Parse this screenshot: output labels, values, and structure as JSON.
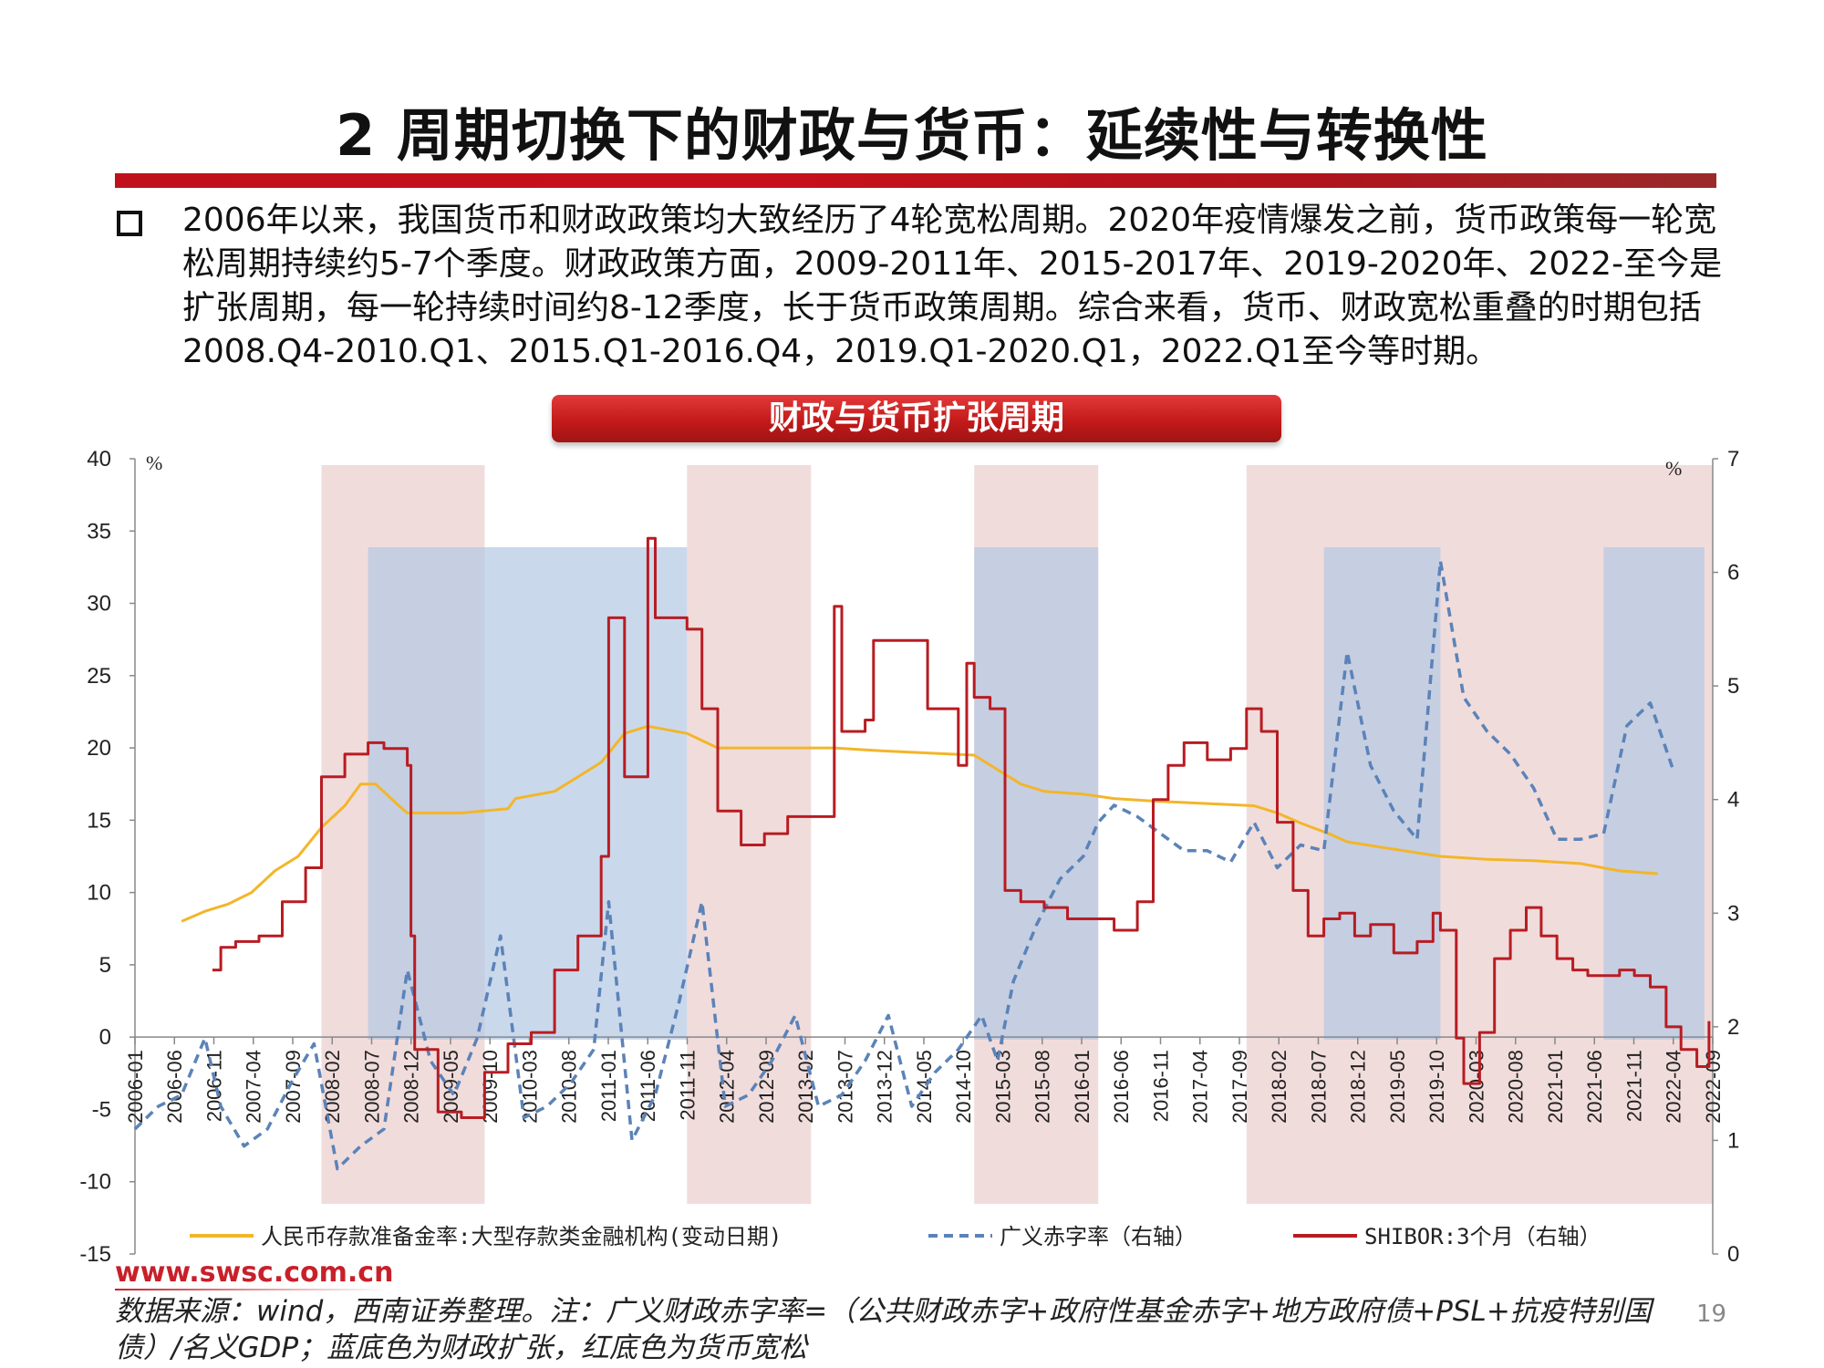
{
  "slide": {
    "title": "2 周期切换下的财政与货币：延续性与转换性",
    "bullet": "2006年以来，我国货币和财政政策均大致经历了4轮宽松周期。2020年疫情爆发之前，货币政策每一轮宽松周期持续约5-7个季度。财政政策方面，2009-2011年、2015-2017年、2019-2020年、2022-至今是扩张周期，每一轮持续时间约8-12季度，长于货币政策周期。综合来看，货币、财政宽松重叠的时期包括2008.Q4-2010.Q1、2015.Q1-2016.Q4，2019.Q1-2020.Q1，2022.Q1至今等时期。",
    "chart_label": "财政与货币扩张周期",
    "website": "www.swsc.com.cn",
    "source": "数据来源：wind，西南证券整理。注：广义财政赤字率=（公共财政赤字+政府性基金赤字+地方政府债+PSL+抗疫特别国债）/名义GDP；蓝底色为财政扩张，红底色为货币宽松",
    "page_number": "19"
  },
  "chart_data": {
    "type": "line",
    "title": "",
    "y_left": {
      "ticks": [
        40,
        35,
        30,
        25,
        20,
        15,
        10,
        5,
        0,
        -5,
        -10,
        -15
      ],
      "unit": "%",
      "range": [
        -15,
        40
      ]
    },
    "y_right": {
      "ticks": [
        7,
        6,
        5,
        4,
        3,
        2,
        1,
        0
      ],
      "unit": "%",
      "range": [
        0,
        7
      ]
    },
    "x_ticks": [
      "2006-01",
      "2006-06",
      "2006-11",
      "2007-04",
      "2007-09",
      "2008-02",
      "2008-07",
      "2008-12",
      "2009-05",
      "2009-10",
      "2010-03",
      "2010-08",
      "2011-01",
      "2011-06",
      "2011-11",
      "2012-04",
      "2012-09",
      "2013-02",
      "2013-07",
      "2013-12",
      "2014-05",
      "2014-10",
      "2015-03",
      "2015-08",
      "2016-01",
      "2016-06",
      "2016-11",
      "2017-04",
      "2017-09",
      "2018-02",
      "2018-07",
      "2018-12",
      "2019-05",
      "2019-10",
      "2020-03",
      "2020-08",
      "2021-01",
      "2021-06",
      "2021-11",
      "2022-04",
      "2022-09"
    ],
    "x_range": [
      2006.0,
      2022.92
    ],
    "colors": {
      "rrr": "#f2b62a",
      "deficit": "#5b83b8",
      "shibor": "#b81c22",
      "monetary_band": "#efd6d6",
      "fiscal_band": "#b4c8e4"
    },
    "monetary_easing_periods": [
      [
        2008.0,
        2009.75
      ],
      [
        2011.92,
        2013.25
      ],
      [
        2015.0,
        2016.33
      ],
      [
        2017.92,
        2022.92
      ]
    ],
    "fiscal_expansion_periods": [
      [
        2008.5,
        2011.92
      ],
      [
        2015.0,
        2016.33
      ],
      [
        2018.75,
        2020.0
      ],
      [
        2021.75,
        2022.83
      ]
    ],
    "series": [
      {
        "name": "人民币存款准备金率:大型存款类金融机构(变动日期)",
        "axis": "left",
        "style": "solid",
        "points": [
          [
            2006.5,
            8.0
          ],
          [
            2006.75,
            8.7
          ],
          [
            2007.0,
            9.2
          ],
          [
            2007.25,
            10.0
          ],
          [
            2007.5,
            11.5
          ],
          [
            2007.75,
            12.5
          ],
          [
            2008.0,
            14.5
          ],
          [
            2008.25,
            16.0
          ],
          [
            2008.42,
            17.5
          ],
          [
            2008.58,
            17.5
          ],
          [
            2008.83,
            16.0
          ],
          [
            2008.92,
            15.5
          ],
          [
            2009.5,
            15.5
          ],
          [
            2010.0,
            15.8
          ],
          [
            2010.08,
            16.5
          ],
          [
            2010.5,
            17.0
          ],
          [
            2011.0,
            19.0
          ],
          [
            2011.25,
            21.0
          ],
          [
            2011.5,
            21.5
          ],
          [
            2011.92,
            21.0
          ],
          [
            2012.25,
            20.0
          ],
          [
            2013.5,
            20.0
          ],
          [
            2014.0,
            19.8
          ],
          [
            2015.0,
            19.5
          ],
          [
            2015.25,
            18.5
          ],
          [
            2015.5,
            17.5
          ],
          [
            2015.75,
            17.0
          ],
          [
            2016.17,
            16.8
          ],
          [
            2016.5,
            16.5
          ],
          [
            2017.0,
            16.3
          ],
          [
            2018.0,
            16.0
          ],
          [
            2018.25,
            15.5
          ],
          [
            2018.5,
            14.8
          ],
          [
            2018.83,
            14.0
          ],
          [
            2019.0,
            13.5
          ],
          [
            2019.5,
            13.0
          ],
          [
            2020.0,
            12.5
          ],
          [
            2020.5,
            12.3
          ],
          [
            2021.0,
            12.2
          ],
          [
            2021.5,
            12.0
          ],
          [
            2021.92,
            11.5
          ],
          [
            2022.33,
            11.3
          ]
        ]
      },
      {
        "name": "广义赤字率（右轴）",
        "axis": "right",
        "style": "dashed",
        "points": [
          [
            2006.0,
            1.1
          ],
          [
            2006.25,
            1.3
          ],
          [
            2006.5,
            1.4
          ],
          [
            2006.75,
            1.9
          ],
          [
            2006.92,
            1.3
          ],
          [
            2007.17,
            0.95
          ],
          [
            2007.42,
            1.1
          ],
          [
            2007.67,
            1.5
          ],
          [
            2007.92,
            1.85
          ],
          [
            2008.17,
            0.75
          ],
          [
            2008.42,
            0.95
          ],
          [
            2008.67,
            1.1
          ],
          [
            2008.92,
            2.5
          ],
          [
            2009.17,
            1.7
          ],
          [
            2009.42,
            1.4
          ],
          [
            2009.67,
            1.9
          ],
          [
            2009.92,
            2.8
          ],
          [
            2010.17,
            1.2
          ],
          [
            2010.42,
            1.3
          ],
          [
            2010.67,
            1.5
          ],
          [
            2010.92,
            1.8
          ],
          [
            2011.08,
            3.1
          ],
          [
            2011.33,
            1.0
          ],
          [
            2011.58,
            1.4
          ],
          [
            2011.83,
            2.2
          ],
          [
            2012.08,
            3.1
          ],
          [
            2012.33,
            1.3
          ],
          [
            2012.58,
            1.4
          ],
          [
            2012.83,
            1.7
          ],
          [
            2013.08,
            2.1
          ],
          [
            2013.33,
            1.3
          ],
          [
            2013.58,
            1.4
          ],
          [
            2013.83,
            1.7
          ],
          [
            2014.08,
            2.1
          ],
          [
            2014.33,
            1.3
          ],
          [
            2014.58,
            1.6
          ],
          [
            2014.83,
            1.8
          ],
          [
            2015.08,
            2.1
          ],
          [
            2015.25,
            1.7
          ],
          [
            2015.42,
            2.4
          ],
          [
            2015.67,
            2.9
          ],
          [
            2015.92,
            3.3
          ],
          [
            2016.17,
            3.5
          ],
          [
            2016.33,
            3.8
          ],
          [
            2016.5,
            3.95
          ],
          [
            2016.75,
            3.85
          ],
          [
            2017.0,
            3.7
          ],
          [
            2017.25,
            3.55
          ],
          [
            2017.5,
            3.55
          ],
          [
            2017.75,
            3.45
          ],
          [
            2018.0,
            3.8
          ],
          [
            2018.25,
            3.4
          ],
          [
            2018.5,
            3.6
          ],
          [
            2018.75,
            3.55
          ],
          [
            2019.0,
            5.3
          ],
          [
            2019.25,
            4.3
          ],
          [
            2019.5,
            3.9
          ],
          [
            2019.75,
            3.65
          ],
          [
            2020.0,
            6.1
          ],
          [
            2020.25,
            4.9
          ],
          [
            2020.5,
            4.6
          ],
          [
            2020.75,
            4.4
          ],
          [
            2021.0,
            4.1
          ],
          [
            2021.25,
            3.65
          ],
          [
            2021.5,
            3.65
          ],
          [
            2021.75,
            3.7
          ],
          [
            2022.0,
            4.65
          ],
          [
            2022.25,
            4.85
          ],
          [
            2022.5,
            4.25
          ]
        ]
      },
      {
        "name": "SHIBOR:3个月（右轴）",
        "axis": "right",
        "style": "solid",
        "points": [
          [
            2006.83,
            2.5
          ],
          [
            2006.92,
            2.7
          ],
          [
            2007.08,
            2.75
          ],
          [
            2007.33,
            2.8
          ],
          [
            2007.58,
            3.1
          ],
          [
            2007.83,
            3.4
          ],
          [
            2008.0,
            4.2
          ],
          [
            2008.25,
            4.4
          ],
          [
            2008.5,
            4.5
          ],
          [
            2008.67,
            4.45
          ],
          [
            2008.92,
            4.3
          ],
          [
            2008.96,
            2.8
          ],
          [
            2009.0,
            1.8
          ],
          [
            2009.25,
            1.25
          ],
          [
            2009.5,
            1.2
          ],
          [
            2009.75,
            1.6
          ],
          [
            2010.0,
            1.85
          ],
          [
            2010.25,
            1.95
          ],
          [
            2010.5,
            2.5
          ],
          [
            2010.75,
            2.8
          ],
          [
            2011.0,
            3.5
          ],
          [
            2011.08,
            5.6
          ],
          [
            2011.25,
            4.2
          ],
          [
            2011.5,
            6.3
          ],
          [
            2011.58,
            5.6
          ],
          [
            2011.75,
            5.6
          ],
          [
            2011.92,
            5.5
          ],
          [
            2012.08,
            4.8
          ],
          [
            2012.25,
            3.9
          ],
          [
            2012.5,
            3.6
          ],
          [
            2012.75,
            3.7
          ],
          [
            2013.0,
            3.85
          ],
          [
            2013.42,
            3.85
          ],
          [
            2013.5,
            5.7
          ],
          [
            2013.58,
            4.6
          ],
          [
            2013.83,
            4.7
          ],
          [
            2013.92,
            5.4
          ],
          [
            2014.25,
            5.4
          ],
          [
            2014.5,
            4.8
          ],
          [
            2014.83,
            4.3
          ],
          [
            2014.92,
            5.2
          ],
          [
            2015.0,
            4.9
          ],
          [
            2015.17,
            4.8
          ],
          [
            2015.33,
            3.2
          ],
          [
            2015.5,
            3.1
          ],
          [
            2015.75,
            3.05
          ],
          [
            2016.0,
            2.95
          ],
          [
            2016.25,
            2.95
          ],
          [
            2016.5,
            2.85
          ],
          [
            2016.75,
            3.1
          ],
          [
            2016.92,
            4.0
          ],
          [
            2017.08,
            4.3
          ],
          [
            2017.25,
            4.5
          ],
          [
            2017.5,
            4.35
          ],
          [
            2017.75,
            4.45
          ],
          [
            2017.92,
            4.8
          ],
          [
            2018.08,
            4.6
          ],
          [
            2018.25,
            3.8
          ],
          [
            2018.42,
            3.2
          ],
          [
            2018.58,
            2.8
          ],
          [
            2018.75,
            2.95
          ],
          [
            2018.92,
            3.0
          ],
          [
            2019.08,
            2.8
          ],
          [
            2019.25,
            2.9
          ],
          [
            2019.5,
            2.65
          ],
          [
            2019.75,
            2.75
          ],
          [
            2019.92,
            3.0
          ],
          [
            2020.0,
            2.85
          ],
          [
            2020.17,
            1.9
          ],
          [
            2020.25,
            1.5
          ],
          [
            2020.42,
            1.95
          ],
          [
            2020.58,
            2.6
          ],
          [
            2020.75,
            2.85
          ],
          [
            2020.92,
            3.05
          ],
          [
            2021.08,
            2.8
          ],
          [
            2021.25,
            2.6
          ],
          [
            2021.42,
            2.5
          ],
          [
            2021.58,
            2.45
          ],
          [
            2021.75,
            2.45
          ],
          [
            2021.92,
            2.5
          ],
          [
            2022.08,
            2.45
          ],
          [
            2022.25,
            2.35
          ],
          [
            2022.42,
            2.0
          ],
          [
            2022.58,
            1.8
          ],
          [
            2022.75,
            1.65
          ],
          [
            2022.88,
            2.05
          ]
        ]
      }
    ]
  }
}
